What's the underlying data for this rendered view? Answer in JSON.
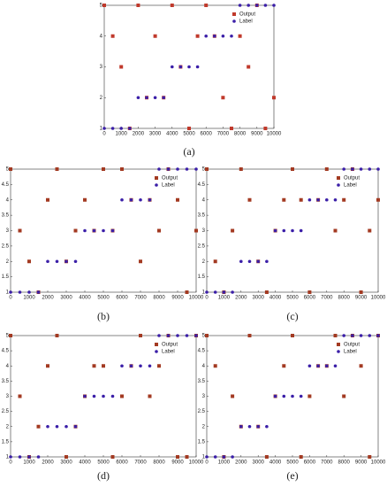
{
  "chart_data": [
    {
      "type": "scatter",
      "caption": "(a)",
      "x": [
        0,
        500,
        1000,
        1500,
        2000,
        2500,
        3000,
        3500,
        4000,
        4500,
        5000,
        5500,
        6000,
        6500,
        7000,
        7500,
        8000,
        8500,
        9000,
        9500,
        10000
      ],
      "series": [
        {
          "name": "Output",
          "color": "#c0392b",
          "values": [
            5,
            4,
            3,
            1,
            5,
            2,
            4,
            2,
            5,
            3,
            1,
            4,
            5,
            4,
            2,
            1,
            4,
            3,
            5,
            1,
            2
          ]
        },
        {
          "name": "Label",
          "color": "#3b1fa8",
          "values": [
            1,
            1,
            1,
            1,
            2,
            2,
            2,
            2,
            3,
            3,
            3,
            3,
            4,
            4,
            4,
            4,
            5,
            5,
            5,
            5,
            5
          ]
        }
      ],
      "xlim": [
        0,
        10000
      ],
      "ylim": [
        1,
        5
      ],
      "xticks": [
        0,
        1000,
        2000,
        3000,
        4000,
        5000,
        6000,
        7000,
        8000,
        9000,
        10000
      ],
      "yticks": [
        1,
        2,
        3,
        4,
        5
      ]
    },
    {
      "type": "scatter",
      "caption": "(b)",
      "x": [
        0,
        500,
        1000,
        1500,
        2000,
        2500,
        3000,
        3500,
        4000,
        4500,
        5000,
        5500,
        6000,
        6500,
        7000,
        7500,
        8000,
        8500,
        9000,
        9500,
        10000
      ],
      "series": [
        {
          "name": "Output",
          "color": "#a33a22",
          "values": [
            5,
            3,
            2,
            1,
            4,
            5,
            2,
            3,
            4,
            3,
            5,
            3,
            5,
            4,
            2,
            4,
            3,
            5,
            4,
            1,
            3
          ]
        },
        {
          "name": "Label",
          "color": "#3b1fa8",
          "values": [
            1,
            1,
            1,
            1,
            2,
            2,
            2,
            2,
            3,
            3,
            3,
            3,
            4,
            4,
            4,
            4,
            5,
            5,
            5,
            5,
            5
          ]
        }
      ],
      "xlim": [
        0,
        10000
      ],
      "ylim": [
        1,
        5
      ],
      "xticks": [
        0,
        1000,
        2000,
        3000,
        4000,
        5000,
        6000,
        7000,
        8000,
        9000,
        10000
      ],
      "yticks": [
        1,
        1.5,
        2,
        2.5,
        3,
        3.5,
        4,
        4.5,
        5
      ]
    },
    {
      "type": "scatter",
      "caption": "(c)",
      "x": [
        0,
        500,
        1000,
        1500,
        2000,
        2500,
        3000,
        3500,
        4000,
        4500,
        5000,
        5500,
        6000,
        6500,
        7000,
        7500,
        8000,
        8500,
        9000,
        9500,
        10000
      ],
      "series": [
        {
          "name": "Output",
          "color": "#a33a22",
          "values": [
            5,
            2,
            1,
            3,
            5,
            4,
            2,
            1,
            3,
            4,
            5,
            4,
            1,
            4,
            5,
            3,
            4,
            5,
            1,
            3,
            4
          ]
        },
        {
          "name": "Label",
          "color": "#3b1fa8",
          "values": [
            1,
            1,
            1,
            1,
            2,
            2,
            2,
            2,
            3,
            3,
            3,
            3,
            4,
            4,
            4,
            4,
            5,
            5,
            5,
            5,
            5
          ]
        }
      ],
      "xlim": [
        0,
        10000
      ],
      "ylim": [
        1,
        5
      ],
      "xticks": [
        0,
        1000,
        2000,
        3000,
        4000,
        5000,
        6000,
        7000,
        8000,
        9000,
        10000
      ],
      "yticks": [
        1,
        1.5,
        2,
        2.5,
        3,
        3.5,
        4,
        4.5,
        5
      ]
    },
    {
      "type": "scatter",
      "caption": "(d)",
      "x": [
        0,
        500,
        1000,
        1500,
        2000,
        2500,
        3000,
        3500,
        4000,
        4500,
        5000,
        5500,
        6000,
        6500,
        7000,
        7500,
        8000,
        8500,
        9000,
        9500,
        10000
      ],
      "series": [
        {
          "name": "Output",
          "color": "#a33a22",
          "values": [
            5,
            3,
            1,
            2,
            4,
            5,
            1,
            2,
            3,
            4,
            4,
            1,
            3,
            4,
            5,
            3,
            4,
            5,
            1,
            1,
            5
          ]
        },
        {
          "name": "Label",
          "color": "#3b1fa8",
          "values": [
            1,
            1,
            1,
            1,
            2,
            2,
            2,
            2,
            3,
            3,
            3,
            3,
            4,
            4,
            4,
            4,
            5,
            5,
            5,
            5,
            5
          ]
        }
      ],
      "xlim": [
        0,
        10000
      ],
      "ylim": [
        1,
        5
      ],
      "xticks": [
        0,
        1000,
        2000,
        3000,
        4000,
        5000,
        6000,
        7000,
        8000,
        9000,
        10000
      ],
      "yticks": [
        1,
        1.5,
        2,
        2.5,
        3,
        3.5,
        4,
        4.5,
        5
      ]
    },
    {
      "type": "scatter",
      "caption": "(e)",
      "x": [
        0,
        500,
        1000,
        1500,
        2000,
        2500,
        3000,
        3500,
        4000,
        4500,
        5000,
        5500,
        6000,
        6500,
        7000,
        7500,
        8000,
        8500,
        9000,
        9500,
        10000
      ],
      "series": [
        {
          "name": "Output",
          "color": "#a33a22",
          "values": [
            5,
            4,
            1,
            3,
            2,
            5,
            2,
            1,
            3,
            4,
            5,
            1,
            3,
            4,
            4,
            5,
            3,
            5,
            4,
            1,
            5
          ]
        },
        {
          "name": "Label",
          "color": "#3b1fa8",
          "values": [
            1,
            1,
            1,
            1,
            2,
            2,
            2,
            2,
            3,
            3,
            3,
            3,
            4,
            4,
            4,
            4,
            5,
            5,
            5,
            5,
            5
          ]
        }
      ],
      "xlim": [
        0,
        10000
      ],
      "ylim": [
        1,
        5
      ],
      "xticks": [
        0,
        1000,
        2000,
        3000,
        4000,
        5000,
        6000,
        7000,
        8000,
        9000,
        10000
      ],
      "yticks": [
        1,
        1.5,
        2,
        2.5,
        3,
        3.5,
        4,
        4.5,
        5
      ]
    }
  ]
}
